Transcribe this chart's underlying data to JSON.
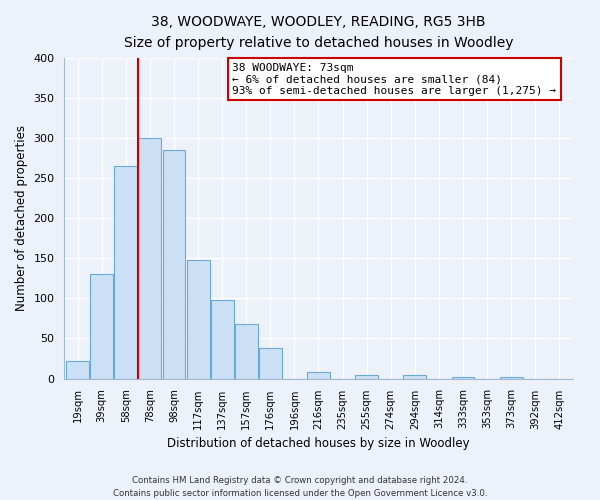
{
  "title": "38, WOODWAYE, WOODLEY, READING, RG5 3HB",
  "subtitle": "Size of property relative to detached houses in Woodley",
  "xlabel": "Distribution of detached houses by size in Woodley",
  "ylabel": "Number of detached properties",
  "bar_labels": [
    "19sqm",
    "39sqm",
    "58sqm",
    "78sqm",
    "98sqm",
    "117sqm",
    "137sqm",
    "157sqm",
    "176sqm",
    "196sqm",
    "216sqm",
    "235sqm",
    "255sqm",
    "274sqm",
    "294sqm",
    "314sqm",
    "333sqm",
    "353sqm",
    "373sqm",
    "392sqm",
    "412sqm"
  ],
  "bar_values": [
    22,
    130,
    265,
    300,
    285,
    148,
    98,
    68,
    38,
    0,
    8,
    0,
    5,
    0,
    5,
    0,
    2,
    0,
    2,
    0,
    0
  ],
  "bar_color": "#cce0f5",
  "bar_edge_color": "#6aabd6",
  "vline_x_index": 3,
  "vline_color": "#cc0000",
  "ylim": [
    0,
    400
  ],
  "yticks": [
    0,
    50,
    100,
    150,
    200,
    250,
    300,
    350,
    400
  ],
  "annotation_title": "38 WOODWAYE: 73sqm",
  "annotation_line1": "← 6% of detached houses are smaller (84)",
  "annotation_line2": "93% of semi-detached houses are larger (1,275) →",
  "annotation_box_color": "#ffffff",
  "annotation_box_edge": "#cc0000",
  "footer1": "Contains HM Land Registry data © Crown copyright and database right 2024.",
  "footer2": "Contains public sector information licensed under the Open Government Licence v3.0.",
  "bg_color": "#edf2fa",
  "plot_bg_color": "#edf2fa",
  "grid_color": "#ffffff",
  "spine_color": "#a0b8d0"
}
